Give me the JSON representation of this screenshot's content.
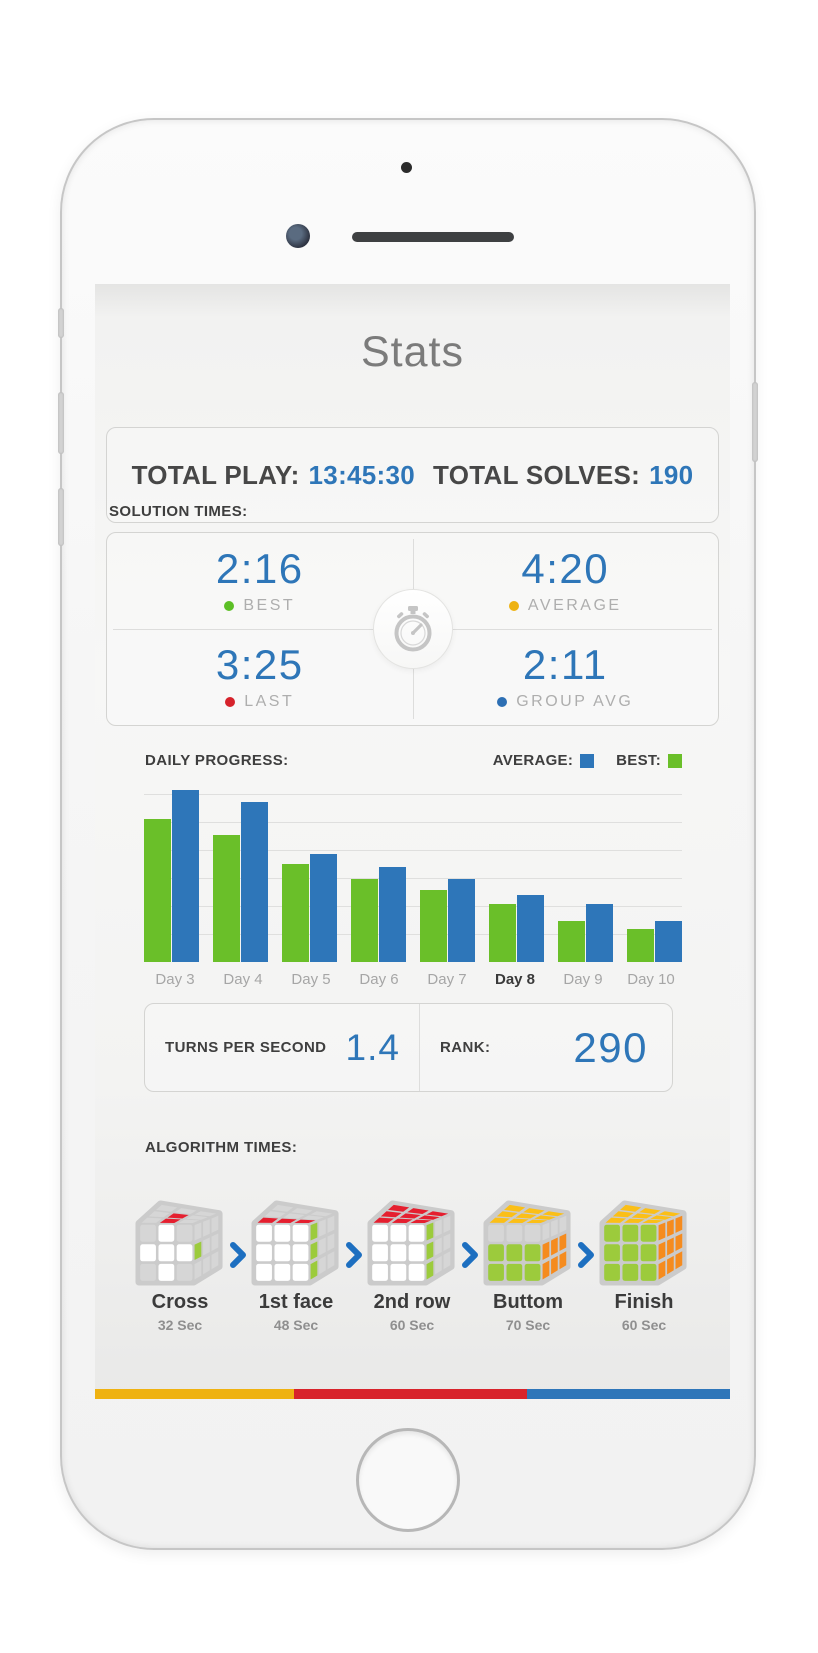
{
  "chart_data": {
    "type": "bar",
    "title": "DAILY PROGRESS:",
    "categories": [
      "Day 3",
      "Day 4",
      "Day 5",
      "Day 6",
      "Day 7",
      "Day 8",
      "Day 9",
      "Day 10"
    ],
    "series": [
      {
        "name": "BEST",
        "color": "#6abf29",
        "values": [
          83,
          74,
          57,
          48,
          42,
          34,
          24,
          19
        ]
      },
      {
        "name": "AVERAGE",
        "color": "#2e76b9",
        "values": [
          100,
          93,
          63,
          55,
          48,
          39,
          34,
          24
        ]
      }
    ],
    "units": "relative height, % of tallest bar (no axis labels shown)",
    "ylim": [
      0,
      100
    ],
    "grid": true,
    "legend_position": "top-right",
    "highlighted_category": "Day 8"
  },
  "screen": {
    "title": "Stats",
    "totals": {
      "play_label": "TOTAL PLAY:",
      "play_value": "13:45:30",
      "solves_label": "TOTAL SOLVES:",
      "solves_value": "190"
    },
    "solution_times": {
      "heading": "SOLUTION TIMES:",
      "center_icon": "stopwatch-icon",
      "items": [
        {
          "value": "2:16",
          "label": "BEST",
          "dot_color": "#5cbf25"
        },
        {
          "value": "4:20",
          "label": "AVERAGE",
          "dot_color": "#eeb211"
        },
        {
          "value": "3:25",
          "label": "LAST",
          "dot_color": "#d6222b"
        },
        {
          "value": "2:11",
          "label": "GROUP AVG",
          "dot_color": "#2d6fb4"
        }
      ]
    },
    "daily_progress": {
      "heading": "DAILY PROGRESS:",
      "legend": [
        {
          "label": "AVERAGE:",
          "color": "#2e76b9"
        },
        {
          "label": "BEST:",
          "color": "#6abf29"
        }
      ]
    },
    "turns": {
      "label": "TURNS PER SECOND",
      "value": "1.4",
      "rank_label": "RANK:",
      "rank_value": "290"
    },
    "algorithm": {
      "heading": "ALGORITHM TIMES:",
      "arrow_icon": "chevron-right-icon",
      "arrow_color": "#1d6fc0",
      "palette": {
        "g": "#d6d6d6",
        "w": "#ffffff",
        "r": "#e51f2f",
        "G": "#9ccb3c",
        "y": "#fbbf17",
        "o": "#f58b1e",
        "grout": "#cbcbcb"
      },
      "steps": [
        {
          "name": "Cross",
          "time": "32 Sec",
          "cube": {
            "top": [
              "g",
              "g",
              "g",
              "g",
              "r",
              "g",
              "g",
              "r",
              "g"
            ],
            "front": [
              "g",
              "w",
              "g",
              "w",
              "w",
              "w",
              "g",
              "w",
              "g"
            ],
            "right": [
              "g",
              "g",
              "g",
              "G",
              "g",
              "g",
              "g",
              "g",
              "g"
            ]
          }
        },
        {
          "name": "1st face",
          "time": "48 Sec",
          "cube": {
            "top": [
              "g",
              "g",
              "g",
              "g",
              "g",
              "g",
              "r",
              "r",
              "r"
            ],
            "front": [
              "w",
              "w",
              "w",
              "w",
              "w",
              "w",
              "w",
              "w",
              "w"
            ],
            "right": [
              "G",
              "g",
              "g",
              "G",
              "g",
              "g",
              "G",
              "g",
              "g"
            ]
          }
        },
        {
          "name": "2nd row",
          "time": "60 Sec",
          "cube": {
            "top": [
              "r",
              "r",
              "r",
              "r",
              "r",
              "r",
              "r",
              "r",
              "r"
            ],
            "front": [
              "w",
              "w",
              "w",
              "w",
              "w",
              "w",
              "w",
              "w",
              "w"
            ],
            "right": [
              "G",
              "g",
              "g",
              "G",
              "g",
              "g",
              "G",
              "g",
              "g"
            ]
          }
        },
        {
          "name": "Buttom",
          "time": "70 Sec",
          "cube": {
            "top": [
              "y",
              "y",
              "y",
              "y",
              "y",
              "y",
              "y",
              "y",
              "y"
            ],
            "front": [
              "g",
              "g",
              "g",
              "G",
              "G",
              "G",
              "G",
              "G",
              "G"
            ],
            "right": [
              "g",
              "g",
              "g",
              "o",
              "o",
              "o",
              "o",
              "o",
              "o"
            ]
          }
        },
        {
          "name": "Finish",
          "time": "60 Sec",
          "cube": {
            "top": [
              "y",
              "y",
              "y",
              "y",
              "y",
              "y",
              "y",
              "y",
              "y"
            ],
            "front": [
              "G",
              "G",
              "G",
              "G",
              "G",
              "G",
              "G",
              "G",
              "G"
            ],
            "right": [
              "o",
              "o",
              "o",
              "o",
              "o",
              "o",
              "o",
              "o",
              "o"
            ]
          }
        }
      ]
    },
    "footer_bar": {
      "segments": [
        {
          "color": "#efb211",
          "width": "31.4%"
        },
        {
          "color": "#d8232b",
          "width": "36.7%"
        },
        {
          "color": "#2e76b9",
          "width": "31.9%"
        }
      ]
    }
  }
}
